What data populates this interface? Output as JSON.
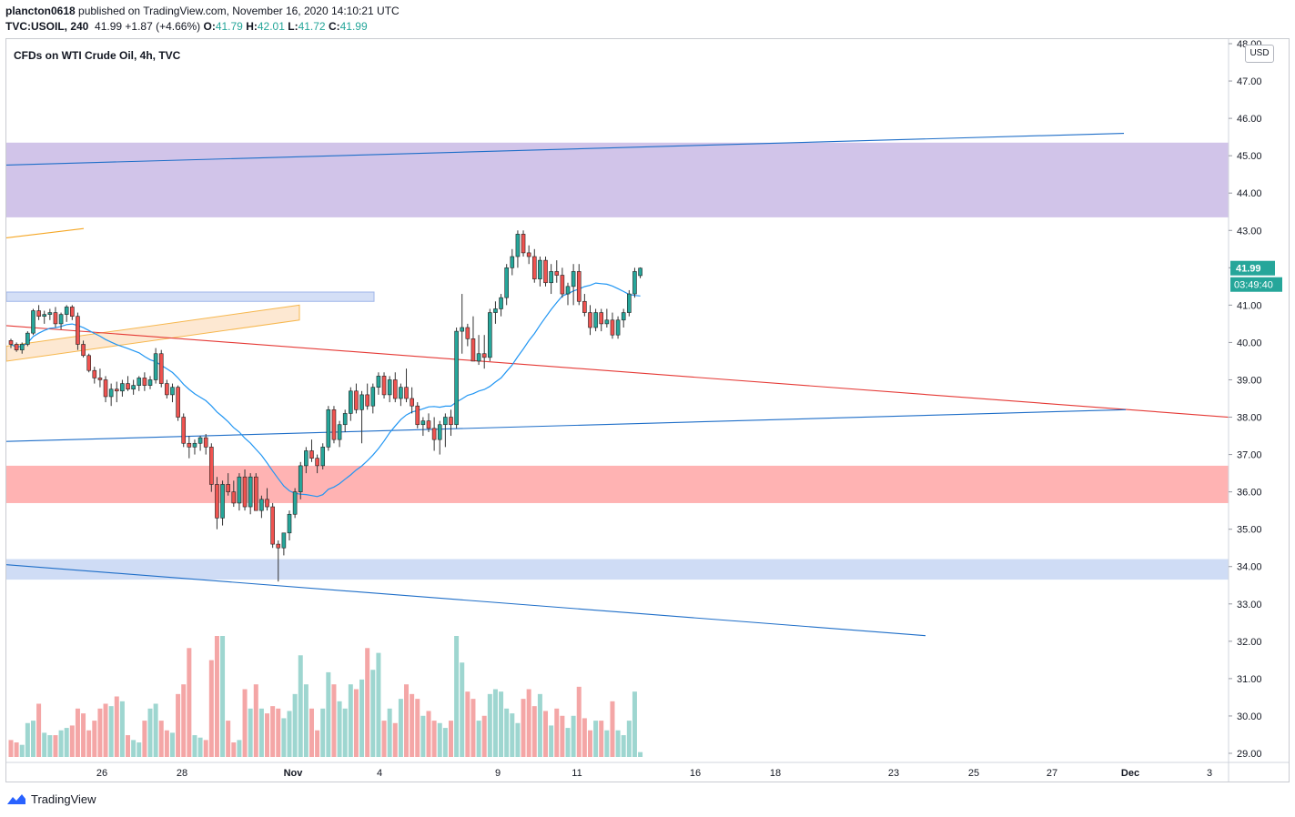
{
  "header": {
    "user": "plancton0618",
    "published": " published on TradingView.com, November 16, 2020 14:10:21 UTC",
    "symbol": "TVC:USOIL, 240",
    "last": "41.99",
    "change": "+1.87 (+4.66%)",
    "o_label": "O:",
    "o_value": "41.79",
    "h_label": "H:",
    "h_value": "42.01",
    "l_label": "L:",
    "l_value": "41.72",
    "c_label": "C:",
    "c_value": "41.99"
  },
  "chart_title": "CFDs on WTI Crude Oil, 4h, TVC",
  "currency": "USD",
  "footer": {
    "brand": "TradingView"
  },
  "colors": {
    "up": "#26a69a",
    "down": "#ef5350",
    "vol_up": "#9ed6d0",
    "vol_down": "#f4a6a6",
    "sma": "#2196f3",
    "resistance_zone": "#d1c4e9",
    "support_zone": "#ffb3b3",
    "blue_zone": "#cfdcf5",
    "red_line": "#e53935",
    "blue_line": "#1e6ec8",
    "orange_line": "#f5a623"
  },
  "chart_data": {
    "type": "candlestick",
    "timeframe": "4h",
    "ylim": [
      29.0,
      48.0
    ],
    "y_ticks": [
      "48.00",
      "47.00",
      "46.00",
      "45.00",
      "44.00",
      "43.00",
      "42.00",
      "41.00",
      "40.00",
      "39.00",
      "38.00",
      "37.00",
      "36.00",
      "35.00",
      "34.00",
      "33.00",
      "32.00",
      "31.00",
      "30.00",
      "29.00"
    ],
    "x_ticks": [
      "26",
      "28",
      "Nov",
      "4",
      "9",
      "11",
      "16",
      "18",
      "23",
      "25",
      "27",
      "Dec",
      "3"
    ],
    "last_price_label": "41.99",
    "countdown_label": "03:49:40",
    "zones": [
      {
        "name": "resistance-zone",
        "from": 43.35,
        "to": 45.35,
        "color": "#d1c4e9"
      },
      {
        "name": "support-zone",
        "from": 35.7,
        "to": 36.7,
        "color": "#ffb3b3"
      },
      {
        "name": "blue-zone-lower",
        "from": 33.65,
        "to": 34.2,
        "color": "#cfdcf5"
      },
      {
        "name": "blue-zone-upper",
        "from": 41.1,
        "to": 41.35,
        "color": "#cfdcf5",
        "span": "partial"
      }
    ],
    "trendlines": [
      {
        "name": "upper-blue-trendline",
        "p1": [
          0,
          44.75
        ],
        "p2": [
          1228,
          45.6
        ],
        "color": "#1e6ec8"
      },
      {
        "name": "red-trendline",
        "p1": [
          0,
          40.45
        ],
        "p2": [
          1343,
          38.0
        ],
        "color": "#e53935"
      },
      {
        "name": "middle-blue-trendline",
        "p1": [
          0,
          37.35
        ],
        "p2": [
          1230,
          38.2
        ],
        "color": "#1e6ec8"
      },
      {
        "name": "lower-blue-trendline",
        "p1": [
          0,
          34.05
        ],
        "p2": [
          1010,
          32.15
        ],
        "color": "#1e6ec8"
      },
      {
        "name": "orange-trendline",
        "p1": [
          0,
          42.8
        ],
        "p2": [
          85,
          43.05
        ],
        "color": "#f5a623"
      }
    ],
    "candles": [
      [
        40.05,
        40.1,
        39.85,
        39.95,
        14
      ],
      [
        39.95,
        40.0,
        39.75,
        39.8,
        12
      ],
      [
        39.8,
        40.0,
        39.7,
        39.95,
        10
      ],
      [
        39.95,
        40.3,
        39.9,
        40.25,
        28
      ],
      [
        40.25,
        40.9,
        40.2,
        40.85,
        30
      ],
      [
        40.85,
        41.0,
        40.6,
        40.7,
        44
      ],
      [
        40.7,
        40.85,
        40.5,
        40.75,
        20
      ],
      [
        40.75,
        40.9,
        40.6,
        40.8,
        18
      ],
      [
        40.8,
        40.95,
        40.4,
        40.5,
        18
      ],
      [
        40.5,
        40.8,
        40.35,
        40.75,
        22
      ],
      [
        40.75,
        41.0,
        40.55,
        40.95,
        24
      ],
      [
        40.95,
        41.0,
        40.6,
        40.7,
        26
      ],
      [
        40.7,
        40.8,
        39.8,
        39.95,
        40
      ],
      [
        39.95,
        40.05,
        39.6,
        39.65,
        36
      ],
      [
        39.65,
        39.7,
        39.2,
        39.25,
        22
      ],
      [
        39.25,
        39.35,
        38.9,
        39.05,
        30
      ],
      [
        39.05,
        39.3,
        38.8,
        39.0,
        40
      ],
      [
        39.0,
        39.1,
        38.4,
        38.55,
        44
      ],
      [
        38.55,
        38.9,
        38.3,
        38.75,
        42
      ],
      [
        38.75,
        38.95,
        38.4,
        38.7,
        50
      ],
      [
        38.7,
        39.0,
        38.55,
        38.9,
        46
      ],
      [
        38.9,
        39.1,
        38.7,
        38.75,
        18
      ],
      [
        38.75,
        39.0,
        38.6,
        38.85,
        14
      ],
      [
        38.85,
        39.1,
        38.7,
        39.05,
        12
      ],
      [
        39.05,
        39.2,
        38.7,
        38.85,
        30
      ],
      [
        38.85,
        39.1,
        38.75,
        39.0,
        40
      ],
      [
        39.0,
        39.85,
        38.9,
        39.7,
        44
      ],
      [
        39.7,
        39.8,
        38.8,
        38.9,
        30
      ],
      [
        38.9,
        39.0,
        38.5,
        38.6,
        22
      ],
      [
        38.6,
        38.9,
        38.4,
        38.8,
        20
      ],
      [
        38.8,
        38.85,
        37.9,
        38.0,
        52
      ],
      [
        38.0,
        38.1,
        37.2,
        37.3,
        60
      ],
      [
        37.3,
        37.5,
        36.9,
        37.2,
        90
      ],
      [
        37.2,
        37.4,
        37.0,
        37.3,
        18
      ],
      [
        37.3,
        37.5,
        37.1,
        37.45,
        16
      ],
      [
        37.45,
        37.55,
        37.0,
        37.2,
        14
      ],
      [
        37.2,
        37.3,
        36.0,
        36.2,
        80
      ],
      [
        36.2,
        36.4,
        35.0,
        35.3,
        100
      ],
      [
        35.3,
        36.3,
        35.1,
        36.2,
        100
      ],
      [
        36.2,
        36.5,
        35.9,
        36.0,
        30
      ],
      [
        36.0,
        36.3,
        35.6,
        35.7,
        12
      ],
      [
        35.7,
        36.5,
        35.5,
        36.4,
        14
      ],
      [
        36.4,
        36.6,
        35.5,
        35.6,
        56
      ],
      [
        35.6,
        36.5,
        35.4,
        36.4,
        40
      ],
      [
        36.4,
        36.5,
        35.5,
        35.5,
        60
      ],
      [
        35.5,
        35.9,
        35.3,
        35.8,
        40
      ],
      [
        35.8,
        36.1,
        35.5,
        35.6,
        36
      ],
      [
        35.6,
        35.7,
        34.5,
        34.6,
        42
      ],
      [
        34.6,
        34.7,
        33.6,
        34.5,
        40
      ],
      [
        34.5,
        34.9,
        34.3,
        34.9,
        32
      ],
      [
        34.9,
        35.5,
        34.7,
        35.4,
        38
      ],
      [
        35.4,
        36.1,
        35.3,
        36.0,
        52
      ],
      [
        36.0,
        36.8,
        35.8,
        36.7,
        84
      ],
      [
        36.7,
        37.2,
        36.5,
        37.1,
        60
      ],
      [
        37.1,
        37.4,
        36.8,
        36.9,
        40
      ],
      [
        36.9,
        37.0,
        36.5,
        36.7,
        22
      ],
      [
        36.7,
        37.3,
        36.6,
        37.2,
        40
      ],
      [
        37.2,
        38.3,
        37.1,
        38.2,
        70
      ],
      [
        38.2,
        38.3,
        37.3,
        37.4,
        60
      ],
      [
        37.4,
        37.9,
        37.2,
        37.8,
        46
      ],
      [
        37.8,
        38.2,
        37.6,
        38.1,
        40
      ],
      [
        38.1,
        38.8,
        37.9,
        38.7,
        60
      ],
      [
        38.7,
        38.9,
        38.1,
        38.2,
        56
      ],
      [
        38.2,
        38.7,
        37.3,
        38.6,
        64
      ],
      [
        38.6,
        38.9,
        38.2,
        38.3,
        90
      ],
      [
        38.3,
        38.9,
        38.1,
        38.8,
        72
      ],
      [
        38.8,
        39.2,
        38.6,
        39.1,
        86
      ],
      [
        39.1,
        39.2,
        38.5,
        38.6,
        30
      ],
      [
        38.6,
        39.1,
        38.4,
        39.0,
        40
      ],
      [
        39.0,
        39.2,
        38.4,
        38.5,
        28
      ],
      [
        38.5,
        38.9,
        38.3,
        38.8,
        48
      ],
      [
        38.8,
        39.3,
        38.4,
        38.5,
        60
      ],
      [
        38.5,
        38.8,
        38.1,
        38.3,
        52
      ],
      [
        38.3,
        38.4,
        37.7,
        37.8,
        48
      ],
      [
        37.8,
        38.0,
        37.5,
        37.9,
        34
      ],
      [
        37.9,
        38.1,
        37.6,
        37.7,
        38
      ],
      [
        37.7,
        38.0,
        37.1,
        37.4,
        30
      ],
      [
        37.4,
        37.9,
        37.0,
        37.8,
        28
      ],
      [
        37.8,
        38.1,
        37.2,
        38.0,
        24
      ],
      [
        38.0,
        38.2,
        37.5,
        37.8,
        30
      ],
      [
        37.8,
        40.4,
        37.7,
        40.3,
        100
      ],
      [
        40.3,
        41.3,
        39.7,
        40.4,
        78
      ],
      [
        40.4,
        40.5,
        39.9,
        40.1,
        54
      ],
      [
        40.1,
        40.7,
        39.5,
        39.5,
        48
      ],
      [
        39.5,
        40.2,
        39.4,
        39.7,
        30
      ],
      [
        39.7,
        40.2,
        39.3,
        39.6,
        34
      ],
      [
        39.6,
        40.9,
        39.5,
        40.8,
        52
      ],
      [
        40.8,
        41.1,
        40.5,
        40.9,
        56
      ],
      [
        40.9,
        41.3,
        40.7,
        41.2,
        54
      ],
      [
        41.2,
        42.1,
        41.0,
        42.0,
        40
      ],
      [
        42.0,
        42.5,
        41.8,
        42.3,
        36
      ],
      [
        42.3,
        43.0,
        42.0,
        42.9,
        28
      ],
      [
        42.9,
        43.0,
        42.3,
        42.4,
        48
      ],
      [
        42.4,
        42.6,
        42.1,
        42.3,
        56
      ],
      [
        42.3,
        42.5,
        41.6,
        41.7,
        42
      ],
      [
        41.7,
        42.3,
        41.5,
        42.2,
        52
      ],
      [
        42.2,
        42.3,
        41.5,
        41.6,
        38
      ],
      [
        41.6,
        42.1,
        41.3,
        41.9,
        26
      ],
      [
        41.9,
        42.2,
        41.6,
        41.8,
        40
      ],
      [
        41.8,
        42.0,
        41.2,
        41.3,
        34
      ],
      [
        41.3,
        41.6,
        41.0,
        41.5,
        24
      ],
      [
        41.5,
        42.1,
        41.0,
        41.9,
        34
      ],
      [
        41.9,
        42.1,
        41.0,
        41.1,
        58
      ],
      [
        41.1,
        41.3,
        40.7,
        40.8,
        32
      ],
      [
        40.8,
        41.0,
        40.2,
        40.4,
        22
      ],
      [
        40.4,
        40.9,
        40.3,
        40.8,
        30
      ],
      [
        40.8,
        40.9,
        40.3,
        40.5,
        30
      ],
      [
        40.5,
        40.9,
        40.4,
        40.6,
        22
      ],
      [
        40.6,
        40.8,
        40.1,
        40.2,
        46
      ],
      [
        40.2,
        40.7,
        40.1,
        40.6,
        22
      ],
      [
        40.6,
        40.9,
        40.4,
        40.8,
        18
      ],
      [
        40.8,
        41.4,
        40.7,
        41.3,
        30
      ],
      [
        41.3,
        42.0,
        41.2,
        41.9,
        54
      ],
      [
        41.79,
        42.01,
        41.72,
        41.99,
        4
      ]
    ]
  }
}
